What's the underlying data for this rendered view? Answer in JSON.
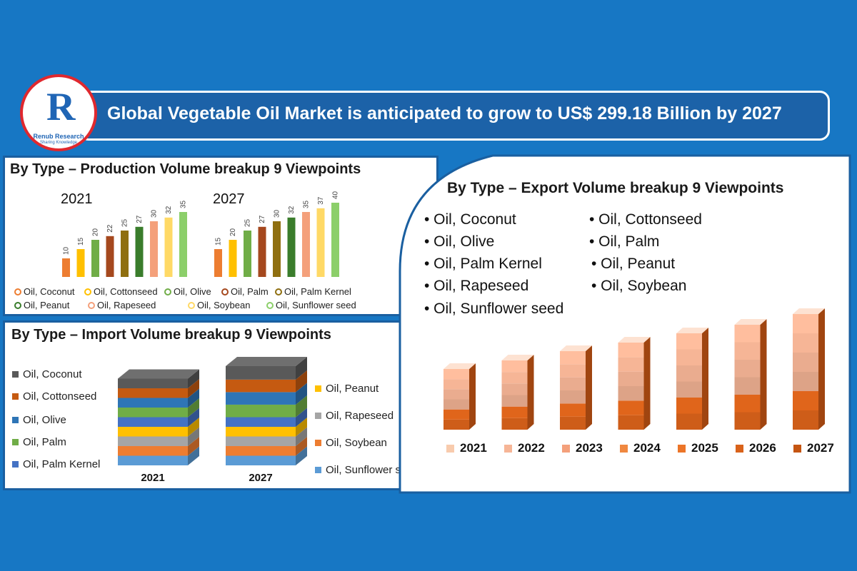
{
  "header": {
    "title": "Global Vegetable Oil Market is anticipated to grow to US$ 299.18 Billion by 2027"
  },
  "logo": {
    "brand": "Renub Research",
    "tagline": "Sharing Knowledge"
  },
  "categories": [
    "Oil, Coconut",
    "Oil, Cottonseed",
    "Oil, Olive",
    "Oil, Palm",
    "Oil, Palm Kernel",
    "Oil, Peanut",
    "Oil, Rapeseed",
    "Oil, Soybean",
    "Oil, Sunflower seed"
  ],
  "colors": [
    "#ed7d31",
    "#ffc000",
    "#70ad47",
    "#a5481e",
    "#8f6f10",
    "#3a7d2c",
    "#f4a07b",
    "#ffd966",
    "#8ccf6a"
  ],
  "production": {
    "title": "By Type – Production Volume breakup 9 Viewpoints"
  },
  "import": {
    "title": "By Type – Import Volume breakup 9 Viewpoints",
    "years": [
      "2021",
      "2027"
    ]
  },
  "export": {
    "title": "By Type – Export Volume breakup 9 Viewpoints",
    "items": [
      "• Oil, Coconut",
      "• Oil, Cottonseed",
      "• Oil, Olive",
      "• Oil, Palm",
      "• Oil, Palm Kernel",
      "• Oil, Peanut",
      "• Oil, Rapeseed",
      "• Oil, Soybean",
      "• Oil, Sunflower seed"
    ]
  },
  "chart_data": [
    {
      "type": "bar",
      "title": "By Type – Production Volume breakup 9 Viewpoints",
      "categories": [
        "Oil, Coconut",
        "Oil, Cottonseed",
        "Oil, Olive",
        "Oil, Palm",
        "Oil, Palm Kernel",
        "Oil, Peanut",
        "Oil, Rapeseed",
        "Oil, Soybean",
        "Oil, Sunflower seed"
      ],
      "series": [
        {
          "name": "2021",
          "values": [
            10,
            15,
            20,
            22,
            25,
            27,
            30,
            32,
            35
          ]
        },
        {
          "name": "2027",
          "values": [
            15,
            20,
            25,
            27,
            30,
            32,
            35,
            37,
            40
          ]
        }
      ],
      "ylim": [
        0,
        40
      ],
      "legend": "bottom"
    },
    {
      "type": "bar",
      "subtype": "stacked-3d",
      "title": "By Type – Import Volume breakup 9 Viewpoints",
      "categories": [
        "2021",
        "2027"
      ],
      "series": [
        {
          "name": "Oil, Sunflower seed",
          "values": [
            1,
            1
          ],
          "color": "#5b9bd5"
        },
        {
          "name": "Oil, Soybean",
          "values": [
            1,
            1
          ],
          "color": "#ed7d31"
        },
        {
          "name": "Oil, Rapeseed",
          "values": [
            1,
            1
          ],
          "color": "#a5a5a5"
        },
        {
          "name": "Oil, Peanut",
          "values": [
            1,
            1
          ],
          "color": "#ffc000"
        },
        {
          "name": "Oil, Palm Kernel",
          "values": [
            1,
            1
          ],
          "color": "#4472c4"
        },
        {
          "name": "Oil, Palm",
          "values": [
            1,
            1.3
          ],
          "color": "#70ad47"
        },
        {
          "name": "Oil, Olive",
          "values": [
            1,
            1.3
          ],
          "color": "#2e75b6"
        },
        {
          "name": "Oil, Cottonseed",
          "values": [
            1,
            1.3
          ],
          "color": "#c55a11"
        },
        {
          "name": "Oil, Coconut",
          "values": [
            1,
            1.4
          ],
          "color": "#595959"
        }
      ],
      "legend": "left and right"
    },
    {
      "type": "bar",
      "subtype": "3d",
      "title": "By Type – Export Volume breakup 9 Viewpoints",
      "categories": [
        "2021",
        "2022",
        "2023",
        "2024",
        "2025",
        "2026",
        "2027"
      ],
      "values": [
        85,
        97,
        110,
        122,
        135,
        147,
        162
      ],
      "colors": [
        "#f8cbad",
        "#f6b596",
        "#f4a07b",
        "#f08840",
        "#ec7528",
        "#d9621a",
        "#c55511"
      ],
      "legend": "bottom"
    }
  ]
}
